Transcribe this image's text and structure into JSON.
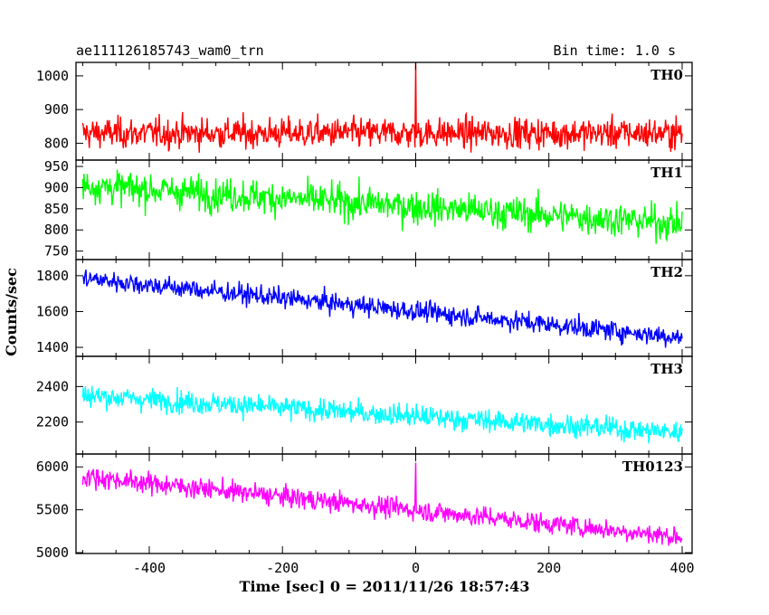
{
  "header": {
    "obs_name": "ae111126185743_wam0_trn",
    "bin_time": "Bin time: 1.0 s"
  },
  "chart_data": {
    "type": "line",
    "xlabel": "Time [sec] 0 = 2011/11/26 18:57:43",
    "ylabel": "Counts/sec",
    "xlim": [
      -510,
      415
    ],
    "xticks": [
      -400,
      -200,
      0,
      200,
      400
    ],
    "x_range": [
      -500,
      400
    ],
    "bin_time_s": 1.0,
    "panels": [
      {
        "name": "TH0",
        "color": "#ff0000",
        "ylim": [
          750,
          1040
        ],
        "yticks": [
          800,
          900,
          1000
        ],
        "trend": [
          830,
          830
        ],
        "noise": 32,
        "spike": {
          "x": 0,
          "value": 1040
        }
      },
      {
        "name": "TH1",
        "color": "#00ff00",
        "ylim": [
          730,
          965
        ],
        "yticks": [
          750,
          800,
          850,
          900,
          950
        ],
        "trend": [
          905,
          815
        ],
        "noise": 28
      },
      {
        "name": "TH2",
        "color": "#0000ff",
        "ylim": [
          1350,
          1890
        ],
        "yticks": [
          1400,
          1600,
          1800
        ],
        "trend": [
          1785,
          1455
        ],
        "noise": 40
      },
      {
        "name": "TH3",
        "color": "#00ffff",
        "ylim": [
          2020,
          2570
        ],
        "yticks": [
          2200,
          2400
        ],
        "trend": [
          2350,
          2140
        ],
        "noise": 45
      },
      {
        "name": "TH0123",
        "color": "#ff00ff",
        "ylim": [
          4990,
          6150
        ],
        "yticks": [
          5000,
          5500,
          6000
        ],
        "trend": [
          5890,
          5180
        ],
        "noise": 85,
        "spike": {
          "x": 0,
          "value": 6050
        }
      }
    ]
  }
}
